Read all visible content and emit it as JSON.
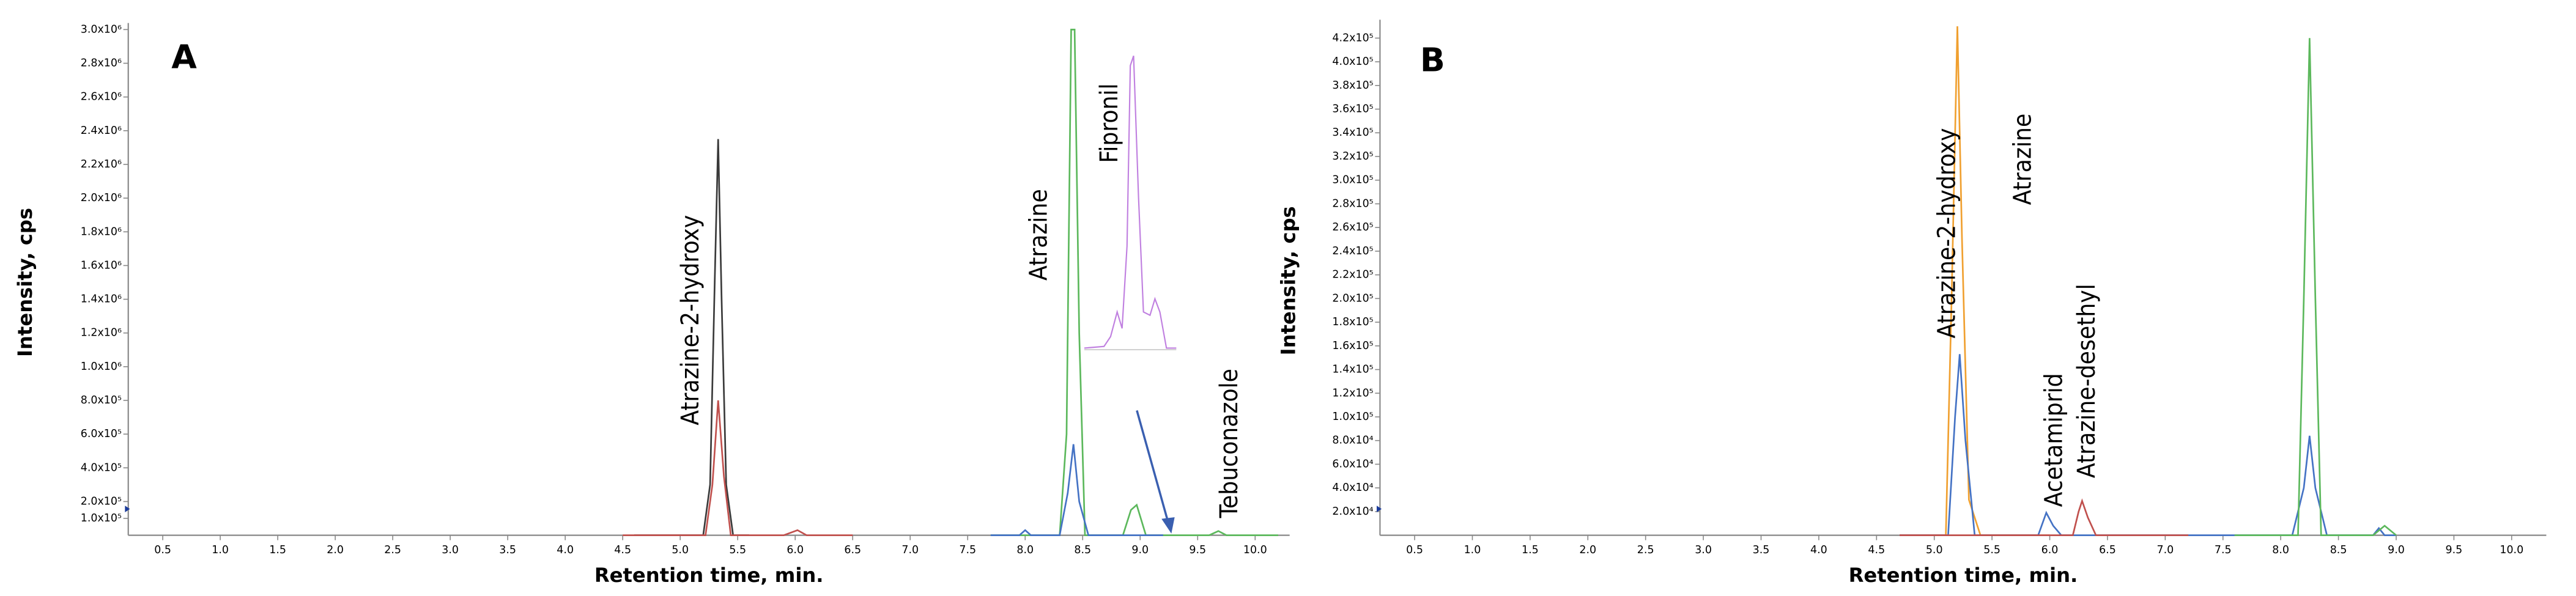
{
  "chart_data": [
    {
      "type": "line",
      "panel_label": "A",
      "y_label": "Intensity, cps",
      "x_label": "Retention time, min.",
      "xlim": [
        0.2,
        10.3
      ],
      "ylim": [
        0,
        3000000
      ],
      "xticks": [
        0.5,
        {
          "value": 1,
          "label": "1.0"
        },
        1.5,
        {
          "value": 2,
          "label": "2.0"
        },
        2.5,
        {
          "value": 3,
          "label": "3.0"
        },
        3.5,
        {
          "value": 4,
          "label": "4.0"
        },
        4.5,
        {
          "value": 5,
          "label": "5.0"
        },
        5.5,
        {
          "value": 6,
          "label": "6.0"
        },
        6.5,
        {
          "value": 7,
          "label": "7.0"
        },
        7.5,
        {
          "value": 8,
          "label": "8.0"
        },
        8.5,
        {
          "value": 9,
          "label": "9.0"
        },
        9.5,
        {
          "value": 10,
          "label": "10.0"
        }
      ],
      "yticks": [
        {
          "value": 100000,
          "label": "1.0x10⁵"
        },
        {
          "value": 200000,
          "label": "2.0x10⁵"
        },
        {
          "value": 400000,
          "label": "4.0x10⁵"
        },
        {
          "value": 600000,
          "label": "6.0x10⁵"
        },
        {
          "value": 800000,
          "label": "8.0x10⁵"
        },
        {
          "value": 1000000,
          "label": "1.0x10⁶"
        },
        {
          "value": 1200000,
          "label": "1.2x10⁶"
        },
        {
          "value": 1400000,
          "label": "1.4x10⁶"
        },
        {
          "value": 1600000,
          "label": "1.6x10⁶"
        },
        {
          "value": 1800000,
          "label": "1.8x10⁶"
        },
        {
          "value": 2000000,
          "label": "2.0x10⁶"
        },
        {
          "value": 2200000,
          "label": "2.2x10⁶"
        },
        {
          "value": 2400000,
          "label": "2.4x10⁶"
        },
        {
          "value": 2600000,
          "label": "2.6x10⁶"
        },
        {
          "value": 2800000,
          "label": "2.8x10⁶"
        },
        {
          "value": 3000000,
          "label": "3.0x10⁶"
        }
      ],
      "annotations": [
        "Atrazine-2-hydroxy",
        "Atrazine",
        "Fipronil",
        "Tebuconazole"
      ],
      "series": [
        {
          "color": "#3a3a3a",
          "x": [
            4.6,
            5.2,
            5.26,
            5.3,
            5.33,
            5.36,
            5.4,
            5.46,
            5.6
          ],
          "values": [
            0,
            0,
            300000,
            1500000,
            2350000,
            1400000,
            300000,
            0,
            0
          ]
        },
        {
          "color": "#c0504d",
          "x": [
            4.5,
            5.22,
            5.28,
            5.33,
            5.38,
            5.44,
            5.9,
            6.02,
            6.1,
            6.5
          ],
          "values": [
            0,
            0,
            300000,
            800000,
            350000,
            0,
            0,
            30000,
            0,
            0
          ]
        },
        {
          "color": "#5cb85c",
          "x": [
            7.7,
            8.3,
            8.36,
            8.4,
            8.43,
            8.47,
            8.52,
            8.85,
            8.92,
            8.97,
            9.05,
            9.6,
            9.68,
            9.75,
            10.2
          ],
          "values": [
            0,
            0,
            600000,
            3000000,
            3000000,
            1200000,
            0,
            0,
            150000,
            180000,
            0,
            0,
            25000,
            0,
            0
          ]
        },
        {
          "color": "#4472c4",
          "x": [
            7.7,
            7.95,
            8.0,
            8.05,
            8.3,
            8.37,
            8.42,
            8.47,
            8.55,
            9.2
          ],
          "values": [
            0,
            0,
            30000,
            0,
            0,
            250000,
            540000,
            200000,
            0,
            0
          ]
        }
      ]
    },
    {
      "type": "line",
      "panel_label": "B",
      "y_label": "Intensity, cps",
      "x_label": "Retention time, min.",
      "xlim": [
        0.2,
        10.3
      ],
      "ylim": [
        0,
        430000
      ],
      "xticks": [
        0.5,
        {
          "value": 1,
          "label": "1.0"
        },
        1.5,
        {
          "value": 2,
          "label": "2.0"
        },
        2.5,
        {
          "value": 3,
          "label": "3.0"
        },
        3.5,
        {
          "value": 4,
          "label": "4.0"
        },
        4.5,
        {
          "value": 5,
          "label": "5.0"
        },
        5.5,
        {
          "value": 6,
          "label": "6.0"
        },
        6.5,
        {
          "value": 7,
          "label": "7.0"
        },
        7.5,
        {
          "value": 8,
          "label": "8.0"
        },
        8.5,
        {
          "value": 9,
          "label": "9.0"
        },
        9.5,
        {
          "value": 10,
          "label": "10.0"
        }
      ],
      "yticks": [
        {
          "value": 20000,
          "label": "2.0x10⁴"
        },
        {
          "value": 40000,
          "label": "4.0x10⁴"
        },
        {
          "value": 60000,
          "label": "6.0x10⁴"
        },
        {
          "value": 80000,
          "label": "8.0x10⁴"
        },
        {
          "value": 100000,
          "label": "1.0x10⁵"
        },
        {
          "value": 120000,
          "label": "1.2x10⁵"
        },
        {
          "value": 140000,
          "label": "1.4x10⁵"
        },
        {
          "value": 160000,
          "label": "1.6x10⁵"
        },
        {
          "value": 180000,
          "label": "1.8x10⁵"
        },
        {
          "value": 200000,
          "label": "2.0x10⁵"
        },
        {
          "value": 220000,
          "label": "2.2x10⁵"
        },
        {
          "value": 240000,
          "label": "2.4x10⁵"
        },
        {
          "value": 260000,
          "label": "2.6x10⁵"
        },
        {
          "value": 280000,
          "label": "2.8x10⁵"
        },
        {
          "value": 300000,
          "label": "3.0x10⁵"
        },
        {
          "value": 320000,
          "label": "3.2x10⁵"
        },
        {
          "value": 340000,
          "label": "3.4x10⁵"
        },
        {
          "value": 360000,
          "label": "3.6x10⁵"
        },
        {
          "value": 380000,
          "label": "3.8x10⁵"
        },
        {
          "value": 400000,
          "label": "4.0x10⁵"
        },
        {
          "value": 420000,
          "label": "4.2x10⁵"
        }
      ],
      "annotations": [
        "Atrazine-2-hydroxy",
        "Acetamiprid",
        "Atrazine-desethyl",
        "Atrazine"
      ],
      "series": [
        {
          "color": "#f0a030",
          "x": [
            4.7,
            5.1,
            5.15,
            5.2,
            5.24,
            5.3,
            5.4,
            6.0
          ],
          "values": [
            0,
            0,
            200000,
            430000,
            250000,
            30000,
            0,
            0
          ]
        },
        {
          "color": "#4472c4",
          "x": [
            4.7,
            5.12,
            5.18,
            5.22,
            5.27,
            5.35,
            5.9,
            5.97,
            6.03,
            6.1,
            8.1,
            8.2,
            8.25,
            8.3,
            8.4,
            8.8,
            8.85,
            8.9,
            9.0
          ],
          "values": [
            0,
            0,
            100000,
            153000,
            80000,
            0,
            0,
            19000,
            8000,
            0,
            0,
            40000,
            84000,
            40000,
            0,
            0,
            6000,
            0,
            0
          ]
        },
        {
          "color": "#c0504d",
          "x": [
            4.7,
            6.2,
            6.25,
            6.28,
            6.33,
            6.4,
            7.1,
            7.2
          ],
          "values": [
            0,
            0,
            20000,
            29000,
            15000,
            0,
            0,
            0
          ]
        },
        {
          "color": "#5cb85c",
          "x": [
            7.6,
            8.15,
            8.2,
            8.25,
            8.3,
            8.35,
            8.8,
            8.9,
            9.0
          ],
          "values": [
            0,
            0,
            200000,
            420000,
            200000,
            0,
            0,
            8000,
            0
          ]
        }
      ]
    }
  ]
}
